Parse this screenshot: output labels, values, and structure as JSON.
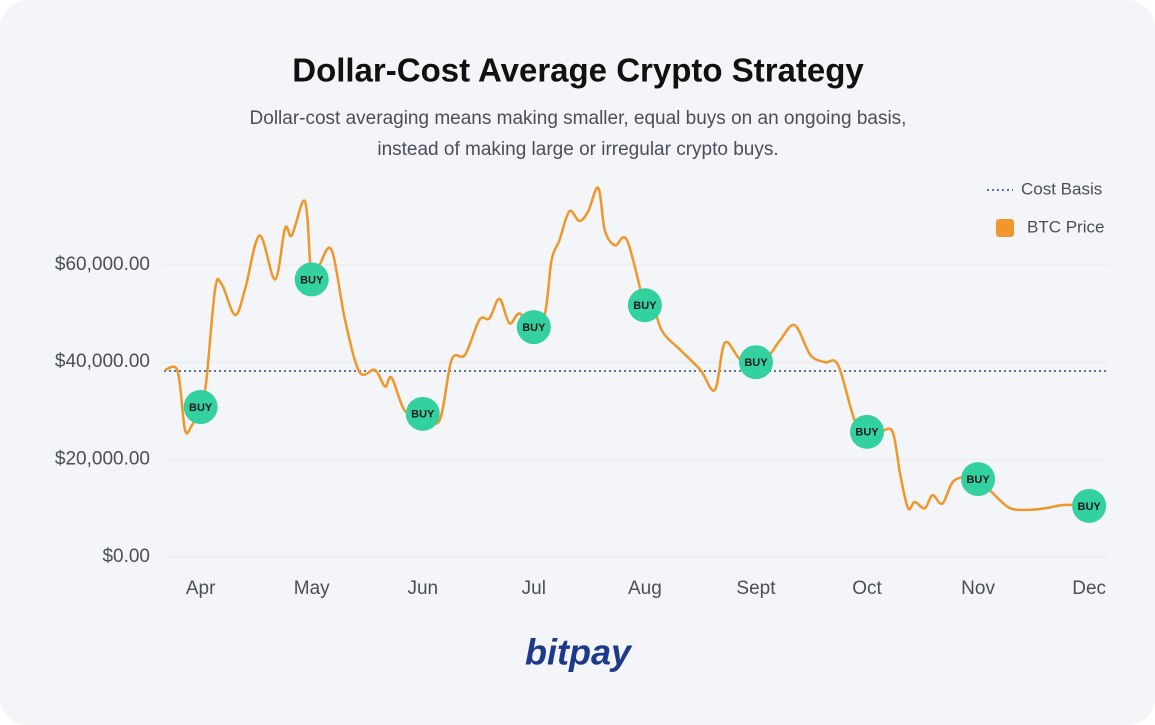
{
  "chart_data": {
    "type": "line",
    "title": "Dollar-Cost Average Crypto Strategy",
    "subtitle": "Dollar-cost averaging means making smaller, equal buys on an ongoing basis, instead of making large or irregular crypto buys.",
    "xlim": [
      -0.33,
      8.17
    ],
    "xticks": [
      {
        "value": 0,
        "label": "Apr"
      },
      {
        "value": 1,
        "label": "May"
      },
      {
        "value": 2,
        "label": "Jun"
      },
      {
        "value": 3,
        "label": "Jul"
      },
      {
        "value": 4,
        "label": "Aug"
      },
      {
        "value": 5,
        "label": "Sept"
      },
      {
        "value": 6,
        "label": "Oct"
      },
      {
        "value": 7,
        "label": "Nov"
      },
      {
        "value": 8,
        "label": "Dec"
      }
    ],
    "ylim": [
      0,
      77000
    ],
    "yticks": [
      {
        "value": 0,
        "label": "$0.00"
      },
      {
        "value": 20000,
        "label": "$20,000.00"
      },
      {
        "value": 40000,
        "label": "$40,000.00"
      },
      {
        "value": 60000,
        "label": "$60,000.00"
      }
    ],
    "grid": true,
    "legend": "top-right",
    "series": [
      {
        "name": "BTC Price",
        "color": "#f0962a",
        "x": [
          -0.32,
          -0.23,
          -0.19,
          -0.14,
          -0.08,
          0,
          0.05,
          0.13,
          0.19,
          0.31,
          0.4,
          0.53,
          0.67,
          0.76,
          0.82,
          0.92,
          0.96,
          1,
          1.07,
          1.18,
          1.3,
          1.43,
          1.57,
          1.66,
          1.72,
          1.84,
          2,
          2.15,
          2.26,
          2.38,
          2.51,
          2.6,
          2.69,
          2.78,
          2.87,
          3,
          3.1,
          3.16,
          3.23,
          3.32,
          3.41,
          3.49,
          3.58,
          3.64,
          3.73,
          3.84,
          4,
          4.05,
          4.15,
          4.32,
          4.5,
          4.63,
          4.72,
          4.86,
          5,
          5.12,
          5.22,
          5.35,
          5.49,
          5.62,
          5.74,
          5.89,
          6,
          6.12,
          6.23,
          6.3,
          6.37,
          6.43,
          6.52,
          6.59,
          6.68,
          6.79,
          7,
          7.15,
          7.29,
          7.47,
          7.6,
          7.78,
          8
        ],
        "values": [
          38400,
          39000,
          36000,
          26000,
          27000,
          30800,
          36000,
          55000,
          56000,
          49700,
          55000,
          66000,
          57000,
          67500,
          66000,
          73000,
          70000,
          57000,
          60000,
          63000,
          48700,
          38000,
          38400,
          35000,
          36800,
          30000,
          29400,
          28000,
          40500,
          41500,
          48700,
          49000,
          53000,
          48000,
          50000,
          47200,
          50000,
          61000,
          65000,
          71000,
          69000,
          71000,
          75800,
          67000,
          64000,
          65000,
          51700,
          53800,
          46600,
          42500,
          38400,
          34300,
          44000,
          40500,
          40000,
          41500,
          44600,
          47600,
          41500,
          40000,
          39400,
          28000,
          25700,
          25700,
          25700,
          16800,
          10000,
          11300,
          10000,
          12700,
          11000,
          15800,
          16000,
          12700,
          10000,
          9700,
          10000,
          10700,
          10500
        ]
      }
    ],
    "buys": {
      "marker_label": "BUY",
      "color": "#34d1a0",
      "x": [
        0,
        1,
        2,
        3,
        4,
        5,
        6,
        7,
        8
      ],
      "values": [
        30800,
        57000,
        29400,
        47200,
        51700,
        40000,
        25700,
        16000,
        10500
      ]
    },
    "cost_basis": {
      "name": "Cost Basis",
      "value": 38200,
      "color": "#2b4a8b"
    },
    "brand": "bitpay"
  }
}
